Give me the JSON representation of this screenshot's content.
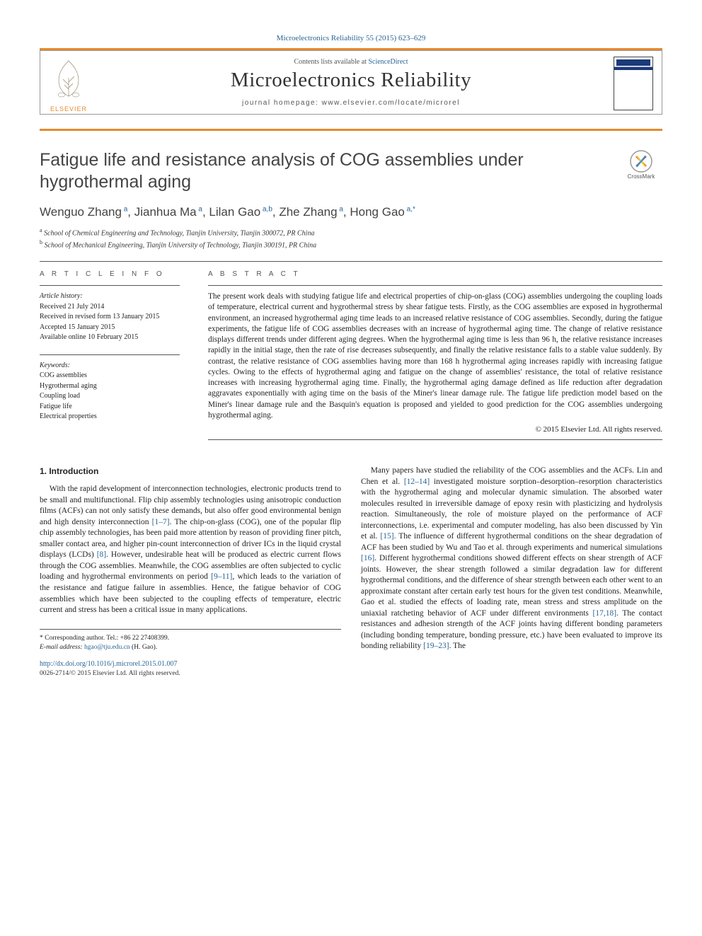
{
  "citation": "Microelectronics Reliability 55 (2015) 623–629",
  "sd_line_prefix": "Contents lists available at ",
  "sd_line_link": "ScienceDirect",
  "journal_name": "Microelectronics Reliability",
  "journal_homepage_label": "journal homepage: ",
  "journal_homepage": "www.elsevier.com/locate/microrel",
  "elsevier_label": "ELSEVIER",
  "crossmark_label": "CrossMark",
  "title": "Fatigue life and resistance analysis of COG assemblies under hygrothermal aging",
  "authors_html_parts": [
    {
      "name": "Wenguo Zhang",
      "sup": "a"
    },
    {
      "name": "Jianhua Ma",
      "sup": "a"
    },
    {
      "name": "Lilan Gao",
      "sup": "a,b"
    },
    {
      "name": "Zhe Zhang",
      "sup": "a"
    },
    {
      "name": "Hong Gao",
      "sup": "a,*"
    }
  ],
  "affiliations": [
    {
      "sup": "a",
      "text": "School of Chemical Engineering and Technology, Tianjin University, Tianjin 300072, PR China"
    },
    {
      "sup": "b",
      "text": "School of Mechanical Engineering, Tianjin University of Technology, Tianjin 300191, PR China"
    }
  ],
  "article_info_head": "A R T I C L E   I N F O",
  "abstract_head": "A B S T R A C T",
  "history_label": "Article history:",
  "history": [
    "Received 21 July 2014",
    "Received in revised form 13 January 2015",
    "Accepted 15 January 2015",
    "Available online 10 February 2015"
  ],
  "keywords_label": "Keywords:",
  "keywords": [
    "COG assemblies",
    "Hygrothermal aging",
    "Coupling load",
    "Fatigue life",
    "Electrical properties"
  ],
  "abstract": "The present work deals with studying fatigue life and electrical properties of chip-on-glass (COG) assemblies undergoing the coupling loads of temperature, electrical current and hygrothermal stress by shear fatigue tests. Firstly, as the COG assemblies are exposed in hygrothermal environment, an increased hygrothermal aging time leads to an increased relative resistance of COG assemblies. Secondly, during the fatigue experiments, the fatigue life of COG assemblies decreases with an increase of hygrothermal aging time. The change of relative resistance displays different trends under different aging degrees. When the hygrothermal aging time is less than 96 h, the relative resistance increases rapidly in the initial stage, then the rate of rise decreases subsequently, and finally the relative resistance falls to a stable value suddenly. By contrast, the relative resistance of COG assemblies having more than 168 h hygrothermal aging increases rapidly with increasing fatigue cycles. Owing to the effects of hygrothermal aging and fatigue on the change of assemblies' resistance, the total of relative resistance increases with increasing hygrothermal aging time. Finally, the hygrothermal aging damage defined as life reduction after degradation aggravates exponentially with aging time on the basis of the Miner's linear damage rule. The fatigue life prediction model based on the Miner's linear damage rule and the Basquin's equation is proposed and yielded to good prediction for the COG assemblies undergoing hygrothermal aging.",
  "copyright_line": "© 2015 Elsevier Ltd. All rights reserved.",
  "intro_head": "1. Introduction",
  "col1_p1": "With the rapid development of interconnection technologies, electronic products trend to be small and multifunctional. Flip chip assembly technologies using anisotropic conduction films (ACFs) can not only satisfy these demands, but also offer good environmental benign and high density interconnection ",
  "col1_r1": "[1–7]",
  "col1_p1b": ". The chip-on-glass (COG), one of the popular flip chip assembly technologies, has been paid more attention by reason of providing finer pitch, smaller contact area, and higher pin-count interconnection of driver ICs in the liquid crystal displays (LCDs) ",
  "col1_r2": "[8]",
  "col1_p1c": ". However, undesirable heat will be produced as electric current flows through the COG assemblies. Meanwhile, the COG assemblies are often subjected to cyclic loading and hygrothermal environments on period ",
  "col1_r3": "[9–11]",
  "col1_p1d": ", which leads to the variation of the resistance and fatigue failure in assemblies. Hence, the fatigue behavior of COG assemblies which have been subjected to the coupling effects of temperature, electric current and stress has been a critical issue in many applications.",
  "col2_p1a": "Many papers have studied the reliability of the COG assemblies and the ACFs. Lin and Chen et al. ",
  "col2_r1": "[12–14]",
  "col2_p1b": " investigated moisture sorption–desorption–resorption characteristics with the hygrothermal aging and molecular dynamic simulation. The absorbed water molecules resulted in irreversible damage of epoxy resin with plasticizing and hydrolysis reaction. Simultaneously, the role of moisture played on the performance of ACF interconnections, i.e. experimental and computer modeling, has also been discussed by Yin et al. ",
  "col2_r2": "[15]",
  "col2_p1c": ". The influence of different hygrothermal conditions on the shear degradation of ACF has been studied by Wu and Tao et al. through experiments and numerical simulations ",
  "col2_r3": "[16]",
  "col2_p1d": ". Different hygrothermal conditions showed different effects on shear strength of ACF joints. However, the shear strength followed a similar degradation law for different hygrothermal conditions, and the difference of shear strength between each other went to an approximate constant after certain early test hours for the given test conditions. Meanwhile, Gao et al. studied the effects of loading rate, mean stress and stress amplitude on the uniaxial ratcheting behavior of ACF under different environments ",
  "col2_r4": "[17,18]",
  "col2_p1e": ". The contact resistances and adhesion strength of the ACF joints having different bonding parameters (including bonding temperature, bonding pressure, etc.) have been evaluated to improve its bonding reliability ",
  "col2_r5": "[19–23]",
  "col2_p1f": ". The",
  "corr_label": "* Corresponding author. Tel.: +86 22 27408399.",
  "email_label": "E-mail address: ",
  "email": "hgao@tju.edu.cn",
  "email_suffix": " (H. Gao).",
  "doi": "http://dx.doi.org/10.1016/j.microrel.2015.01.007",
  "issn_line": "0026-2714/© 2015 Elsevier Ltd. All rights reserved.",
  "colors": {
    "link": "#2a6496",
    "orange": "#e68a2e",
    "text": "#222222",
    "rule": "#555555"
  }
}
